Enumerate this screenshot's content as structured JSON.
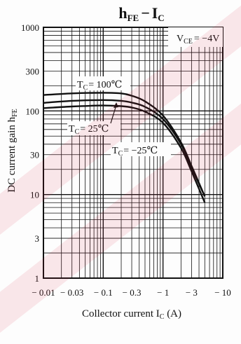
{
  "colors": {
    "ink": "#111111",
    "paper": "#fdfdfd",
    "watermark": "#d61e3c"
  },
  "chart_data": {
    "type": "line",
    "title_main": "h",
    "title_main_sub": "FE",
    "title_sep": "−",
    "title_second": "I",
    "title_second_sub": "C",
    "condition_prefix": "V",
    "condition_sub": "CE",
    "condition_suffix": "= −4V",
    "xlabel_prefix": "Collector current I",
    "xlabel_sub": "C",
    "xlabel_suffix": " (A)",
    "ylabel_prefix": "DC current gain h",
    "ylabel_sub": "FE",
    "xscale": "log",
    "yscale": "log",
    "xlim": [
      -0.01,
      -10
    ],
    "ylim": [
      1,
      1000
    ],
    "grid": true,
    "xticks": [
      {
        "value": -0.01,
        "label": "− 0.01"
      },
      {
        "value": -0.03,
        "label": "− 0.03"
      },
      {
        "value": -0.1,
        "label": "− 0.1"
      },
      {
        "value": -0.3,
        "label": "− 0.3"
      },
      {
        "value": -1,
        "label": "− 1"
      },
      {
        "value": -3,
        "label": "− 3"
      },
      {
        "value": -10,
        "label": "− 10"
      }
    ],
    "yticks": [
      {
        "value": 1000,
        "label": "1000"
      },
      {
        "value": 300,
        "label": "300"
      },
      {
        "value": 100,
        "label": "100"
      },
      {
        "value": 30,
        "label": "30"
      },
      {
        "value": 10,
        "label": "10"
      },
      {
        "value": 3,
        "label": "3"
      },
      {
        "value": 1,
        "label": "1"
      }
    ],
    "series": [
      {
        "name": "T_C = 100℃",
        "label_prefix": "T",
        "label_sub": "C",
        "label_suffix": "= 100℃",
        "x": [
          -0.01,
          -0.03,
          -0.1,
          -0.2,
          -0.3,
          -0.5,
          -1,
          -2,
          -3,
          -5
        ],
        "y": [
          155,
          162,
          165,
          162,
          152,
          130,
          88,
          42,
          22,
          9.5
        ]
      },
      {
        "name": "T_C = 25℃",
        "label_prefix": "T",
        "label_sub": "C",
        "label_suffix": "= 25℃",
        "x": [
          -0.01,
          -0.03,
          -0.1,
          -0.2,
          -0.3,
          -0.5,
          -1,
          -2,
          -3,
          -5
        ],
        "y": [
          125,
          132,
          135,
          132,
          126,
          112,
          80,
          40,
          21,
          9.5
        ]
      },
      {
        "name": "T_C = −25℃",
        "label_prefix": "T",
        "label_sub": "C",
        "label_suffix": "= −25℃",
        "x": [
          -0.01,
          -0.03,
          -0.1,
          -0.2,
          -0.3,
          -0.5,
          -1,
          -2,
          -3,
          -5
        ],
        "y": [
          108,
          113,
          116,
          114,
          110,
          98,
          72,
          36,
          19,
          8
        ]
      }
    ]
  }
}
